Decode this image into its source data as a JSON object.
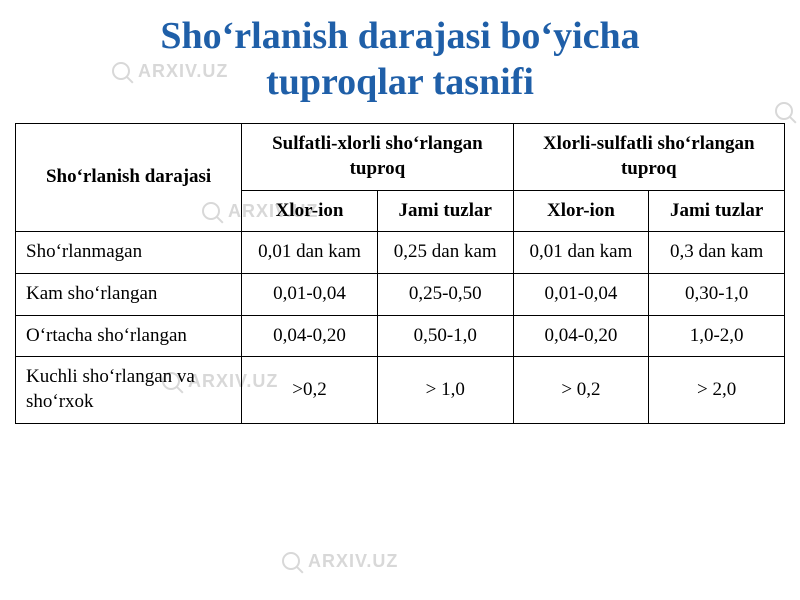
{
  "title_line1": "Shoʻrlanish darajasi boʻyicha",
  "title_line2": "tuproqlar tasnifi",
  "title_color": "#1f5fa8",
  "watermark_text": "ARXIV.UZ",
  "watermark_color": "#d8d8d8",
  "table": {
    "border_color": "#000000",
    "font_family": "Times New Roman",
    "header_degree": "Shoʻrlanish darajasi",
    "group1_label": "Sulfatli-xlorli shoʻrlangan tuproq",
    "group2_label": "Xlorli-sulfatli shoʻrlangan tuproq",
    "sub_xlor": "Xlor-ion",
    "sub_jami": "Jami tuzlar",
    "rows": [
      {
        "degree": "Shoʻrlanmagan",
        "sx_xlor": "0,01 dan kam",
        "sx_jami": "0,25 dan kam",
        "xs_xlor": "0,01 dan kam",
        "xs_jami": "0,3 dan kam"
      },
      {
        "degree": "Kam shoʻrlangan",
        "sx_xlor": "0,01-0,04",
        "sx_jami": "0,25-0,50",
        "xs_xlor": "0,01-0,04",
        "xs_jami": "0,30-1,0"
      },
      {
        "degree": "Oʻrtacha shoʻrlangan",
        "sx_xlor": "0,04-0,20",
        "sx_jami": "0,50-1,0",
        "xs_xlor": "0,04-0,20",
        "xs_jami": "1,0-2,0"
      },
      {
        "degree": "Kuchli shoʻrlangan va shoʻrxok",
        "sx_xlor": ">0,2",
        "sx_jami": "> 1,0",
        "xs_xlor": "> 0,2",
        "xs_jami": "> 2,0"
      }
    ]
  }
}
